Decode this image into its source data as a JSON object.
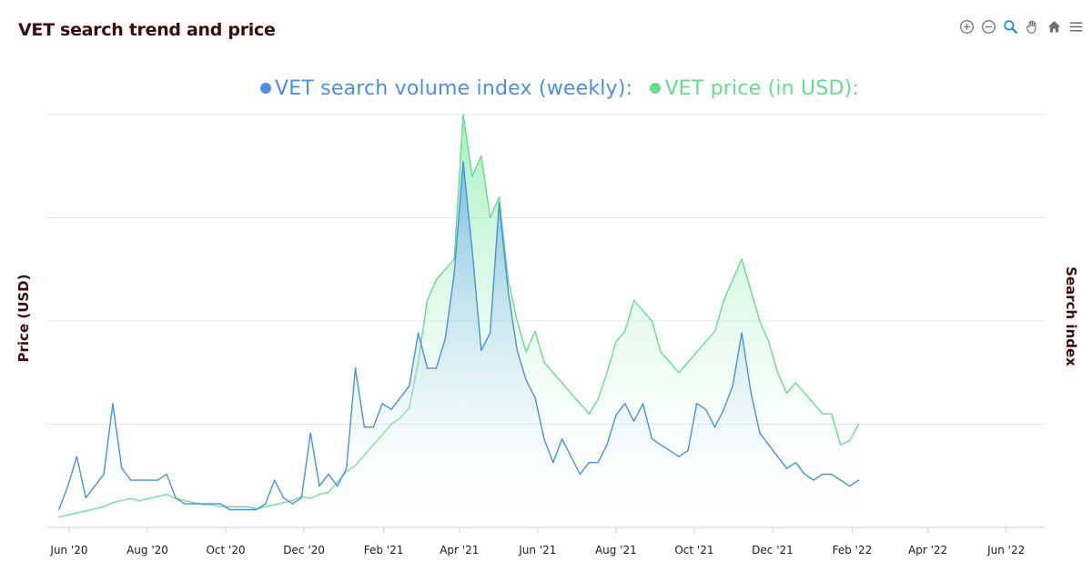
{
  "header": {
    "title": "VET search trend and price"
  },
  "toolbar": {
    "icons": [
      "zoom-in-icon",
      "zoom-out-icon",
      "zoom-select-icon",
      "pan-icon",
      "home-icon",
      "menu-icon"
    ]
  },
  "legend": {
    "search_label": "VET search volume index (weekly):",
    "price_label": "VET price (in USD):"
  },
  "colors": {
    "search": "#4a90e2",
    "search_fill": "#6aaee6",
    "price": "#66dd8a",
    "price_fill": "#8eedb0",
    "grid": "#e4e4e4",
    "text_dark": "#3a0d0d"
  },
  "chart_data": {
    "type": "area",
    "xlabel": "",
    "ylabel_left": "Price (USD)",
    "ylabel_right": "Search index",
    "x_ticks": [
      "Jun '20",
      "Aug '20",
      "Oct '20",
      "Dec '20",
      "Feb '21",
      "Apr '21",
      "Jun '21",
      "Aug '21",
      "Oct '21",
      "Dec '21",
      "Feb '22",
      "Apr '22",
      "Jun '22"
    ],
    "grid": true,
    "series": [
      {
        "name": "VET search volume index (weekly):",
        "axis": "right",
        "x": [
          "2020-05-24",
          "2020-05-31",
          "2020-06-07",
          "2020-06-14",
          "2020-06-21",
          "2020-06-28",
          "2020-07-05",
          "2020-07-12",
          "2020-07-19",
          "2020-07-26",
          "2020-08-02",
          "2020-08-09",
          "2020-08-16",
          "2020-08-23",
          "2020-08-30",
          "2020-09-06",
          "2020-09-13",
          "2020-09-20",
          "2020-09-27",
          "2020-10-04",
          "2020-10-11",
          "2020-10-18",
          "2020-10-25",
          "2020-11-01",
          "2020-11-08",
          "2020-11-15",
          "2020-11-22",
          "2020-11-29",
          "2020-12-06",
          "2020-12-13",
          "2020-12-20",
          "2020-12-27",
          "2021-01-03",
          "2021-01-10",
          "2021-01-17",
          "2021-01-24",
          "2021-01-31",
          "2021-02-07",
          "2021-02-14",
          "2021-02-21",
          "2021-02-28",
          "2021-03-07",
          "2021-03-14",
          "2021-03-21",
          "2021-03-28",
          "2021-04-04",
          "2021-04-11",
          "2021-04-18",
          "2021-04-25",
          "2021-05-02",
          "2021-05-09",
          "2021-05-16",
          "2021-05-23",
          "2021-05-30",
          "2021-06-06",
          "2021-06-13",
          "2021-06-20",
          "2021-06-27",
          "2021-07-04",
          "2021-07-11",
          "2021-07-18",
          "2021-07-25",
          "2021-08-01",
          "2021-08-08",
          "2021-08-15",
          "2021-08-22",
          "2021-08-29",
          "2021-09-05",
          "2021-09-12",
          "2021-09-19",
          "2021-09-26",
          "2021-10-03",
          "2021-10-10",
          "2021-10-17",
          "2021-10-24",
          "2021-10-31",
          "2021-11-07",
          "2021-11-14",
          "2021-11-21",
          "2021-11-28",
          "2021-12-05",
          "2021-12-12",
          "2021-12-19",
          "2021-12-26",
          "2022-01-02",
          "2022-01-09",
          "2022-01-16",
          "2022-01-23",
          "2022-01-30",
          "2022-02-06"
        ],
        "values": [
          3,
          7,
          12,
          5,
          7,
          9,
          21,
          10,
          8,
          8,
          8,
          8,
          9,
          5,
          4,
          4,
          4,
          4,
          4,
          3,
          3,
          3,
          3,
          4,
          8,
          5,
          4,
          5,
          16,
          7,
          9,
          7,
          10,
          27,
          17,
          17,
          21,
          20,
          22,
          24,
          33,
          27,
          27,
          32,
          43,
          62,
          47,
          30,
          33,
          55,
          40,
          30,
          25,
          22,
          15,
          11,
          15,
          12,
          9,
          11,
          11,
          14,
          19,
          21,
          18,
          21,
          15,
          14,
          13,
          12,
          13,
          21,
          20,
          17,
          20,
          24,
          33,
          23,
          16,
          14,
          12,
          10,
          11,
          9,
          8,
          9,
          9,
          8,
          7,
          8
        ]
      },
      {
        "name": "VET price (in USD):",
        "axis": "left",
        "x": [
          "2020-05-24",
          "2020-05-31",
          "2020-06-07",
          "2020-06-14",
          "2020-06-21",
          "2020-06-28",
          "2020-07-05",
          "2020-07-12",
          "2020-07-19",
          "2020-07-26",
          "2020-08-02",
          "2020-08-09",
          "2020-08-16",
          "2020-08-23",
          "2020-08-30",
          "2020-09-06",
          "2020-09-13",
          "2020-09-20",
          "2020-09-27",
          "2020-10-04",
          "2020-10-11",
          "2020-10-18",
          "2020-10-25",
          "2020-11-01",
          "2020-11-08",
          "2020-11-15",
          "2020-11-22",
          "2020-11-29",
          "2020-12-06",
          "2020-12-13",
          "2020-12-20",
          "2020-12-27",
          "2021-01-03",
          "2021-01-10",
          "2021-01-17",
          "2021-01-24",
          "2021-01-31",
          "2021-02-07",
          "2021-02-14",
          "2021-02-21",
          "2021-02-28",
          "2021-03-07",
          "2021-03-14",
          "2021-03-21",
          "2021-03-28",
          "2021-04-04",
          "2021-04-11",
          "2021-04-18",
          "2021-04-25",
          "2021-05-02",
          "2021-05-09",
          "2021-05-16",
          "2021-05-23",
          "2021-05-30",
          "2021-06-06",
          "2021-06-13",
          "2021-06-20",
          "2021-06-27",
          "2021-07-04",
          "2021-07-11",
          "2021-07-18",
          "2021-07-25",
          "2021-08-01",
          "2021-08-08",
          "2021-08-15",
          "2021-08-22",
          "2021-08-29",
          "2021-09-05",
          "2021-09-12",
          "2021-09-19",
          "2021-09-26",
          "2021-10-03",
          "2021-10-10",
          "2021-10-17",
          "2021-10-24",
          "2021-10-31",
          "2021-11-07",
          "2021-11-14",
          "2021-11-21",
          "2021-11-28",
          "2021-12-05",
          "2021-12-12",
          "2021-12-19",
          "2021-12-26",
          "2022-01-02",
          "2022-01-09",
          "2022-01-16",
          "2022-01-23",
          "2022-01-30",
          "2022-02-06"
        ],
        "values": [
          0.005,
          0.006,
          0.007,
          0.008,
          0.009,
          0.01,
          0.012,
          0.013,
          0.014,
          0.013,
          0.014,
          0.015,
          0.016,
          0.014,
          0.013,
          0.012,
          0.011,
          0.011,
          0.01,
          0.01,
          0.01,
          0.01,
          0.009,
          0.01,
          0.011,
          0.012,
          0.013,
          0.015,
          0.014,
          0.016,
          0.017,
          0.022,
          0.027,
          0.03,
          0.035,
          0.04,
          0.045,
          0.05,
          0.053,
          0.058,
          0.08,
          0.11,
          0.12,
          0.125,
          0.13,
          0.2,
          0.17,
          0.18,
          0.15,
          0.16,
          0.12,
          0.1,
          0.085,
          0.095,
          0.08,
          0.075,
          0.07,
          0.065,
          0.06,
          0.055,
          0.062,
          0.075,
          0.09,
          0.095,
          0.11,
          0.105,
          0.1,
          0.085,
          0.08,
          0.075,
          0.08,
          0.085,
          0.09,
          0.095,
          0.11,
          0.12,
          0.13,
          0.115,
          0.1,
          0.09,
          0.075,
          0.065,
          0.07,
          0.065,
          0.06,
          0.055,
          0.055,
          0.04,
          0.042,
          0.05
        ]
      }
    ],
    "x_range": [
      "2020-05-15",
      "2022-07-01"
    ],
    "y_left_range": [
      0,
      0.2
    ],
    "y_right_range": [
      0,
      70
    ]
  }
}
